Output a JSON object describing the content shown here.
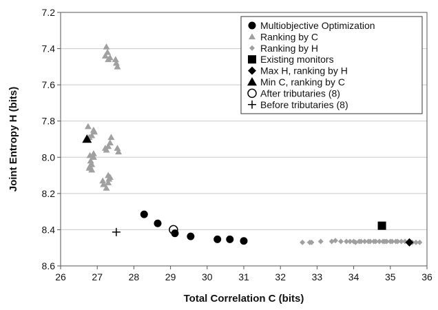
{
  "chart_data": {
    "type": "scatter",
    "xlabel": "Total Correlation C (bits)",
    "ylabel": "Joint Entropy H (bits)",
    "xlim": [
      26,
      36
    ],
    "ylim": [
      7.2,
      8.6
    ],
    "y_reversed": true,
    "x_ticks": [
      "26",
      "27",
      "28",
      "29",
      "30",
      "31",
      "32",
      "33",
      "34",
      "35",
      "36"
    ],
    "y_ticks": [
      "7.2",
      "7.4",
      "7.6",
      "7.8",
      "8.0",
      "8.2",
      "8.4",
      "8.6"
    ],
    "grid": "horizontal",
    "legend_position": "top-right",
    "series": [
      {
        "name": "Multiobjective Optimization",
        "marker": "circle",
        "color": "#000000",
        "points": [
          [
            28.28,
            8.315
          ],
          [
            28.65,
            8.365
          ],
          [
            29.12,
            8.42
          ],
          [
            29.55,
            8.437
          ],
          [
            30.28,
            8.453
          ],
          [
            30.62,
            8.453
          ],
          [
            31.0,
            8.462
          ]
        ]
      },
      {
        "name": "Ranking by C",
        "marker": "triangle",
        "color": "#a0a0a0",
        "points": [
          [
            27.25,
            7.39
          ],
          [
            27.28,
            7.42
          ],
          [
            27.22,
            7.44
          ],
          [
            27.3,
            7.46
          ],
          [
            27.5,
            7.46
          ],
          [
            27.52,
            7.48
          ],
          [
            27.55,
            7.5
          ],
          [
            27.35,
            7.45
          ],
          [
            26.75,
            7.83
          ],
          [
            26.9,
            7.85
          ],
          [
            26.92,
            7.86
          ],
          [
            26.85,
            7.88
          ],
          [
            26.78,
            7.89
          ],
          [
            26.8,
            7.99
          ],
          [
            26.9,
            8.0
          ],
          [
            26.82,
            8.02
          ],
          [
            26.85,
            8.04
          ],
          [
            26.8,
            8.05
          ],
          [
            26.78,
            8.06
          ],
          [
            26.85,
            8.07
          ],
          [
            26.9,
            7.98
          ],
          [
            27.38,
            7.89
          ],
          [
            27.35,
            7.92
          ],
          [
            27.22,
            7.95
          ],
          [
            27.3,
            7.94
          ],
          [
            27.25,
            7.96
          ],
          [
            27.55,
            7.95
          ],
          [
            27.58,
            7.97
          ],
          [
            27.3,
            8.1
          ],
          [
            27.32,
            8.12
          ],
          [
            27.35,
            8.11
          ],
          [
            27.15,
            8.13
          ],
          [
            27.17,
            8.15
          ],
          [
            27.25,
            8.17
          ],
          [
            27.3,
            8.14
          ]
        ]
      },
      {
        "name": "Ranking by H",
        "marker": "diamond",
        "color": "#a0a0a0",
        "points": [
          [
            32.6,
            8.47
          ],
          [
            32.8,
            8.47
          ],
          [
            32.85,
            8.47
          ],
          [
            33.1,
            8.465
          ],
          [
            33.4,
            8.465
          ],
          [
            33.5,
            8.46
          ],
          [
            33.65,
            8.465
          ],
          [
            33.8,
            8.465
          ],
          [
            33.9,
            8.465
          ],
          [
            34.0,
            8.465
          ],
          [
            34.05,
            8.47
          ],
          [
            34.15,
            8.465
          ],
          [
            34.2,
            8.465
          ],
          [
            34.3,
            8.465
          ],
          [
            34.4,
            8.465
          ],
          [
            34.45,
            8.465
          ],
          [
            34.55,
            8.465
          ],
          [
            34.6,
            8.465
          ],
          [
            34.7,
            8.465
          ],
          [
            34.8,
            8.465
          ],
          [
            34.85,
            8.465
          ],
          [
            34.9,
            8.465
          ],
          [
            35.0,
            8.465
          ],
          [
            35.05,
            8.465
          ],
          [
            35.15,
            8.465
          ],
          [
            35.2,
            8.465
          ],
          [
            35.3,
            8.465
          ],
          [
            35.4,
            8.465
          ],
          [
            35.6,
            8.47
          ],
          [
            35.7,
            8.47
          ],
          [
            35.8,
            8.47
          ]
        ]
      },
      {
        "name": "Existing monitors",
        "marker": "square",
        "color": "#000000",
        "points": [
          [
            34.77,
            8.378
          ]
        ]
      },
      {
        "name": "Max H, ranking by H",
        "marker": "diamond",
        "color": "#000000",
        "points": [
          [
            35.52,
            8.47
          ]
        ]
      },
      {
        "name": "Min C, ranking by C",
        "marker": "triangle",
        "color": "#000000",
        "points": [
          [
            26.72,
            7.9
          ]
        ]
      },
      {
        "name": "After tributaries (8)",
        "marker": "open-circle",
        "color": "#000000",
        "points": [
          [
            29.08,
            8.4
          ]
        ]
      },
      {
        "name": "Before tributaries (8)",
        "marker": "plus",
        "color": "#000000",
        "points": [
          [
            27.52,
            8.413
          ]
        ]
      }
    ]
  }
}
